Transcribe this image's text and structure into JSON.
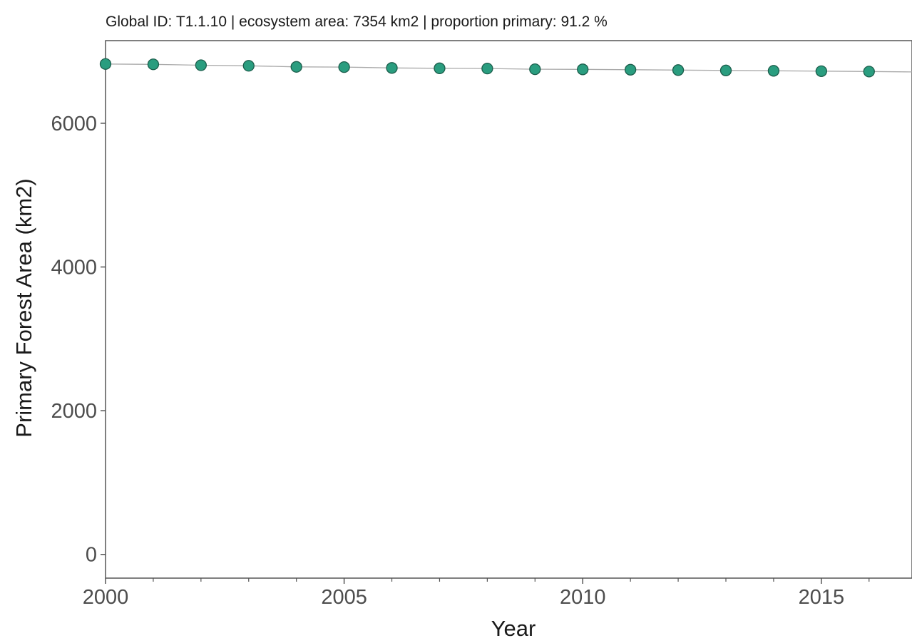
{
  "chart_data": {
    "type": "line",
    "title": "Global ID:  T1.1.10  | ecosystem area:  7354 km2 | proportion primary:  91.2 %",
    "xlabel": "Year",
    "ylabel": "Primary Forest Area (km2)",
    "xlim": [
      2000,
      2016.9
    ],
    "ylim": [
      -330,
      7150
    ],
    "x_ticks": [
      2000,
      2005,
      2010,
      2015
    ],
    "y_ticks": [
      0,
      2000,
      4000,
      6000
    ],
    "grid": false,
    "series": [
      {
        "x": [
          2000,
          2001,
          2002,
          2003,
          2004,
          2005,
          2006,
          2007,
          2008,
          2009,
          2010,
          2011,
          2012,
          2013,
          2014,
          2015,
          2016
        ],
        "y": [
          6825,
          6820,
          6808,
          6800,
          6785,
          6782,
          6770,
          6765,
          6762,
          6752,
          6750,
          6745,
          6740,
          6735,
          6730,
          6725,
          6720
        ]
      }
    ],
    "colors": {
      "point_fill": "#2a9d7f",
      "point_stroke": "#1c5e4c",
      "line": "#aaaaaa",
      "axis": "#555555",
      "tick_text": "#4d4d4d",
      "title_text": "#1a1a1a"
    }
  }
}
